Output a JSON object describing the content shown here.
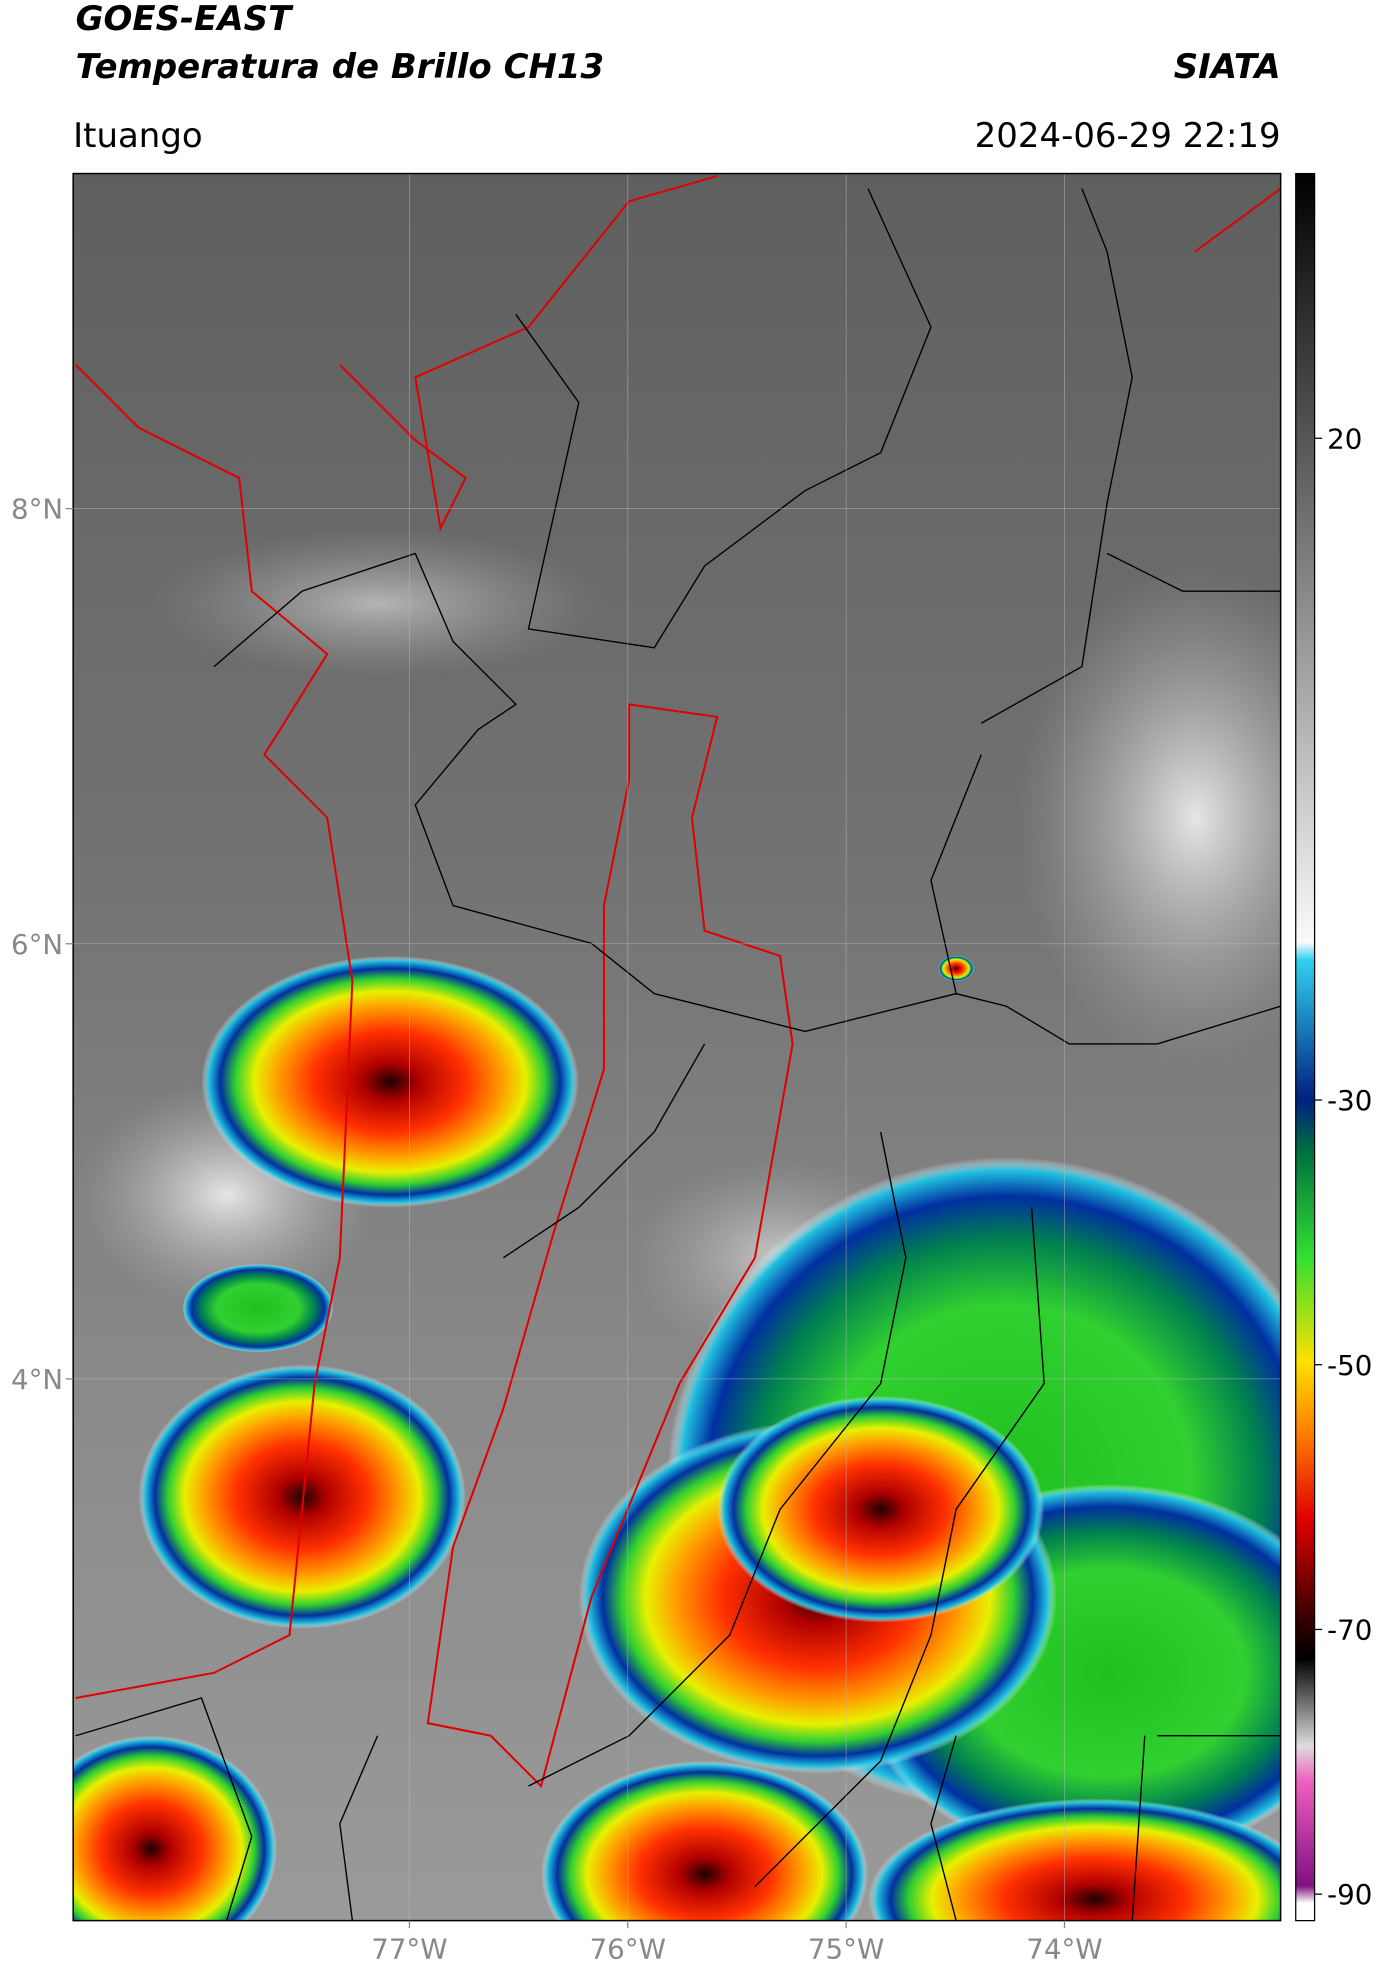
{
  "header": {
    "title": "GOES-EAST",
    "subtitle": "Temperatura de Brillo CH13",
    "source": "SIATA",
    "location": "Ituango",
    "datetime": "2024-06-29 22:19"
  },
  "map": {
    "xlim": [
      -78.54,
      -73.01
    ],
    "ylim": [
      1.51,
      9.54
    ],
    "xticks": [
      {
        "value": -77,
        "label": "77°W"
      },
      {
        "value": -76,
        "label": "76°W"
      },
      {
        "value": -75,
        "label": "75°W"
      },
      {
        "value": -74,
        "label": "74°W"
      }
    ],
    "yticks": [
      {
        "value": 8,
        "label": "8°N"
      },
      {
        "value": 6,
        "label": "6°N"
      },
      {
        "value": 4,
        "label": "4°N"
      }
    ],
    "grid": true
  },
  "colorbar": {
    "lim": [
      -92,
      40
    ],
    "ticks": [
      20,
      -30,
      -50,
      -70,
      -90
    ]
  }
}
